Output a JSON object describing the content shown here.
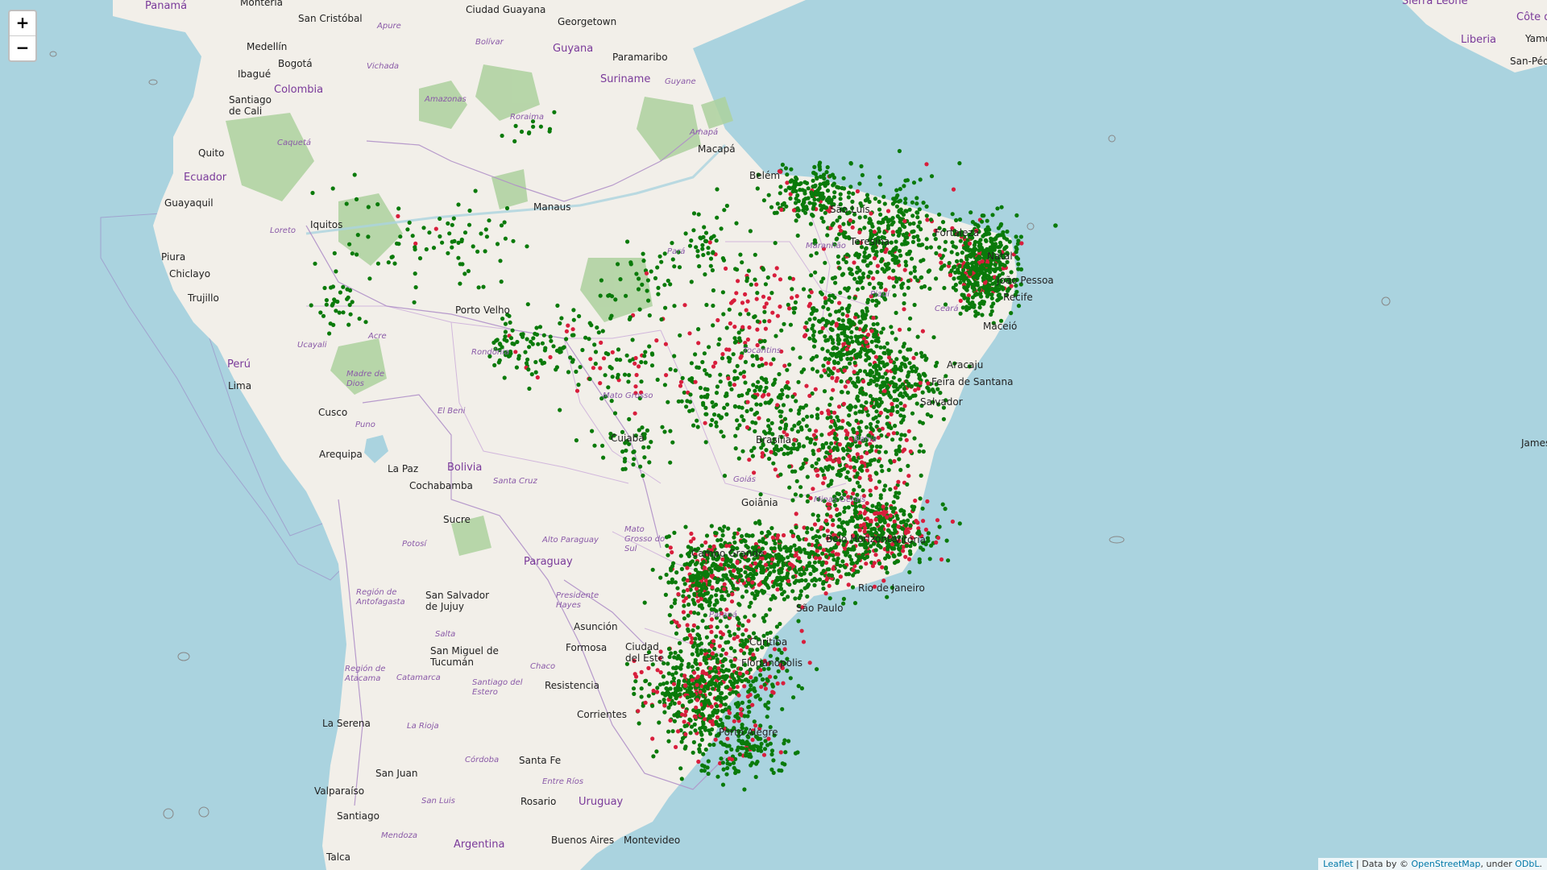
{
  "zoom": {
    "in_label": "+",
    "out_label": "−"
  },
  "attribution": {
    "leaflet": "Leaflet",
    "sep": " | Data by © ",
    "osm": "OpenStreetMap",
    "under": ", under ",
    "odbl": "ODbL",
    "end": "."
  },
  "marker_colors": {
    "green": "#0a7a0a",
    "red": "#d81e3c"
  },
  "labels": {
    "countries": [
      "Panamá",
      "Colombia",
      "Ecuador",
      "Perú",
      "Bolivia",
      "Paraguay",
      "Argentina",
      "Uruguay",
      "Guyana",
      "Suriname",
      "Liberia",
      "Côte d"
    ],
    "cities": [
      "Montería",
      "San Cristóbal",
      "Ciudad Guayana",
      "Georgetown",
      "Paramaribo",
      "Medellín",
      "Bogotá",
      "Ibagué",
      "Santiago de Cali",
      "Quito",
      "Guayaquil",
      "Iquitos",
      "Piura",
      "Chiclayo",
      "Trujillo",
      "Lima",
      "Cusco",
      "Arequipa",
      "La Paz",
      "Cochabamba",
      "Sucre",
      "Porto Velho",
      "Manaus",
      "Macapá",
      "Belém",
      "São Luís",
      "Teresina",
      "Fortaleza",
      "Natal",
      "João Pessoa",
      "Recife",
      "Maceió",
      "Aracaju",
      "Feira de Santana",
      "Salvador",
      "Brasília",
      "Cuiabá",
      "Goiânia",
      "Campo Grande",
      "Vitória",
      "Belo Horizonte",
      "Rio de Janeiro",
      "São Paulo",
      "Curitiba",
      "Florianópolis",
      "Porto Alegre",
      "Asunción",
      "Ciudad del Este",
      "Formosa",
      "Resistencia",
      "Corrientes",
      "San Salvador de Jujuy",
      "San Miguel de Tucumán",
      "Santa Fe",
      "Rosario",
      "Buenos Aires",
      "Montevideo",
      "La Serena",
      "San Juan",
      "Valparaíso",
      "Santiago",
      "Talca",
      "Yamoussoukro",
      "San-Pédro",
      "Jamestown",
      "Sierra Leone"
    ],
    "regions": [
      "Apure",
      "Bolívar",
      "Vichada",
      "Amazonas",
      "Caquetá",
      "Loreto",
      "Ucayali",
      "Madre de Dios",
      "Puno",
      "Acre",
      "Rondônia",
      "Mato Grosso",
      "Mato Grosso do Sul",
      "Pará",
      "Amapá",
      "Roraima",
      "Guyane",
      "El Beni",
      "Santa Cruz",
      "Potosí",
      "Alto Paraguay",
      "Presidente Hayes",
      "Región de Antofagasta",
      "Salta",
      "Región de Atacama",
      "Catamarca",
      "Santiago del Estero",
      "Chaco",
      "La Rioja",
      "San Luis",
      "Córdoba",
      "Entre Ríos",
      "Mendoza",
      "Tocantins",
      "Maranhão",
      "Piauí",
      "Ceará",
      "Bahia",
      "Minas Gerais",
      "Goiás",
      "Paraná"
    ]
  }
}
